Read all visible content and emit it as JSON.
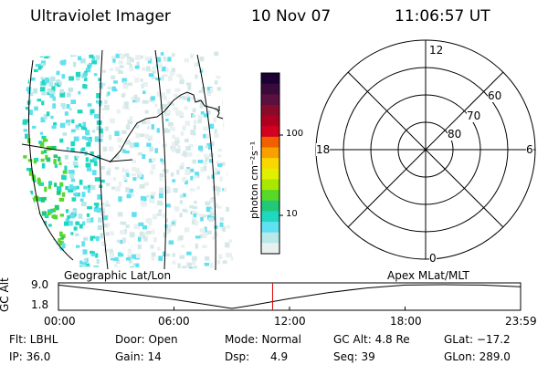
{
  "header": {
    "title": "Ultraviolet Imager",
    "date": "10 Nov 07",
    "time": "11:06:57 UT"
  },
  "colorbar": {
    "label": "photon cm⁻²s⁻¹",
    "ticks": [
      "100",
      "10"
    ],
    "colors": [
      "#1a0033",
      "#3a0a3a",
      "#5a1040",
      "#8a0a2a",
      "#b00020",
      "#d40020",
      "#f06000",
      "#f8a000",
      "#f8d800",
      "#e0f000",
      "#a8e800",
      "#58d828",
      "#20c878",
      "#20d8c0",
      "#60e0f0",
      "#b8e8e8",
      "#e8f0f0"
    ]
  },
  "map": {
    "label": "Geographic Lat/Lon"
  },
  "polar": {
    "label": "Apex MLat/MLT",
    "mlt_labels": {
      "top": "12",
      "bottom": "0",
      "left": "18",
      "right": "6"
    },
    "lat_labels": [
      "60",
      "70",
      "80"
    ]
  },
  "chart_data": {
    "type": "line",
    "ylabel": "GC Alt",
    "yticks": [
      "9.0",
      "1.8"
    ],
    "ylim": [
      1.8,
      9.0
    ],
    "xticks": [
      "00:00",
      "06:00",
      "12:00",
      "18:00",
      "23:59"
    ],
    "series": [
      {
        "values_hours": [
          0,
          2,
          4,
          6,
          8,
          9.0,
          10,
          12,
          14,
          16,
          18,
          20,
          22,
          23.98
        ],
        "values_alt": [
          8.9,
          7.6,
          6.1,
          4.5,
          2.7,
          1.8,
          2.7,
          4.8,
          6.6,
          8.0,
          8.9,
          9.0,
          8.9,
          8.4
        ]
      }
    ],
    "current_time_hours": 11.12,
    "current_marker_color": "#e00000"
  },
  "footer": {
    "flt": "Flt: LBHL",
    "door": "Door: Open",
    "mode": "Mode: Normal",
    "gcalt": "GC Alt: 4.8 Re",
    "glat": "GLat: −17.2",
    "ip": "IP: 36.0",
    "gain": "Gain: 14",
    "dsp": "Dsp:      4.9",
    "seq": "Seq: 39",
    "glon": "GLon: 289.0"
  }
}
